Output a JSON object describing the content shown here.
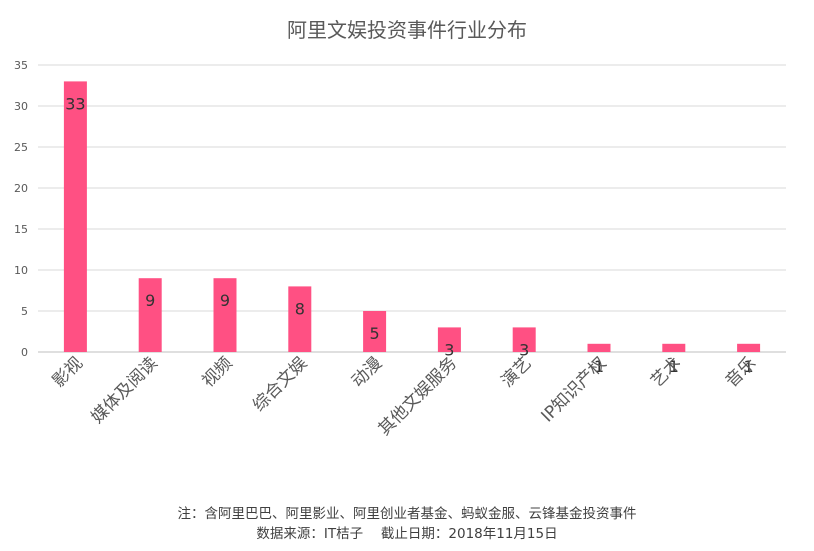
{
  "chart_data": {
    "type": "bar",
    "title": "阿里文娱投资事件行业分布",
    "categories": [
      "影视",
      "媒体及阅读",
      "视频",
      "综合文娱",
      "动漫",
      "其他文娱服务",
      "演艺",
      "IP知识产权",
      "艺术",
      "音乐"
    ],
    "values": [
      33,
      9,
      9,
      8,
      5,
      3,
      3,
      1,
      1,
      1
    ],
    "ylim": [
      0,
      35
    ],
    "yticks": [
      0,
      5,
      10,
      15,
      20,
      25,
      30,
      35
    ],
    "grid": true,
    "legend": "none",
    "bar_color": "#ff5083"
  },
  "notes": {
    "line1": "注：含阿里巴巴、阿里影业、阿里创业者基金、蚂蚁金服、云锋基金投资事件",
    "line2": "数据来源：IT桔子　 截止日期：2018年11月15日"
  }
}
